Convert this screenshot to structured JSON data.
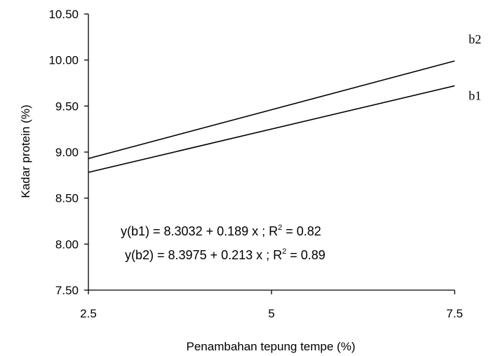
{
  "chart_data": {
    "type": "line",
    "title": "",
    "xlabel": "Penambahan tepung tempe (%)",
    "ylabel": "Kadar protein (%)",
    "xlim": [
      2.5,
      7.5
    ],
    "ylim": [
      7.5,
      10.5
    ],
    "x_ticks": [
      "2.5",
      "5",
      "7.5"
    ],
    "y_ticks": [
      "7.50",
      "8.00",
      "8.50",
      "9.00",
      "9.50",
      "10.00",
      "10.50"
    ],
    "grid": false,
    "x": [
      2.5,
      7.5
    ],
    "series": [
      {
        "name": "b2",
        "values": [
          8.93,
          9.99
        ]
      },
      {
        "name": "b1",
        "values": [
          8.78,
          9.72
        ]
      }
    ],
    "annotations": [
      {
        "main": "y(b1) = 8.3032 + 0.189 x ; R",
        "sup": "2",
        "tail": " = 0.82"
      },
      {
        "main": "y(b2) = 8.3975 + 0.213 x ; R",
        "sup": "2",
        "tail": " = 0.89"
      }
    ]
  }
}
